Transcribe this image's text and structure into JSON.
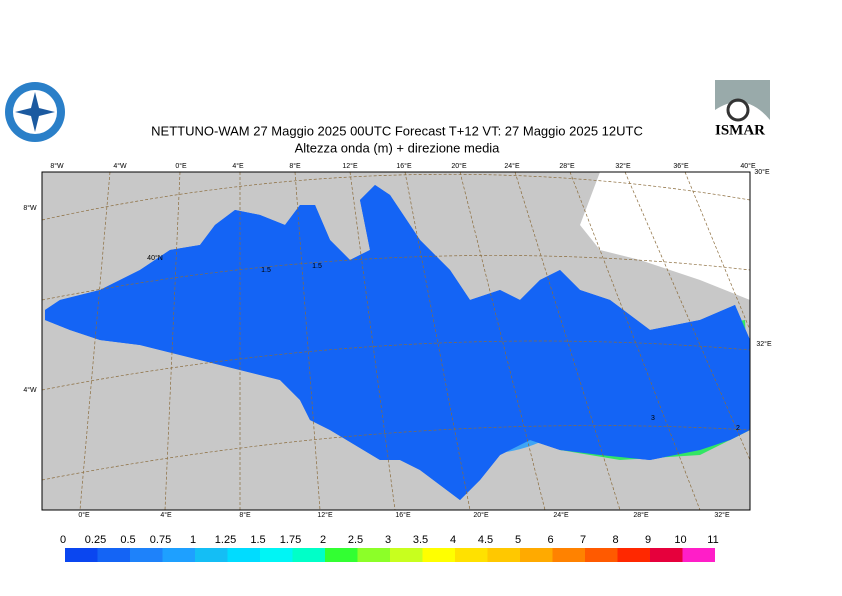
{
  "header": {
    "title": "NETTUNO-WAM  27   Maggio  2025 00UTC Forecast T+12 VT: 27   Maggio  2025 12UTC",
    "subtitle": "Altezza onda (m) + direzione media",
    "logo_text": "ISMAR"
  },
  "graticule_labels": {
    "top": [
      "8°W",
      "4°W",
      "0°E",
      "4°E",
      "8°E",
      "12°E",
      "16°E",
      "20°E",
      "24°E",
      "28°E",
      "32°E",
      "36°E",
      "40°E"
    ],
    "bottom": [
      "0°E",
      "4°E",
      "8°E",
      "12°E",
      "16°E",
      "20°E",
      "24°E",
      "28°E",
      "32°E"
    ],
    "left": [
      "8°W",
      "4°W"
    ],
    "inner": [
      "40°N"
    ],
    "right": [
      "30°E",
      "32°E"
    ]
  },
  "contour_labels": [
    "1.5",
    "1.5",
    "3",
    "2"
  ],
  "colorbar": {
    "levels": [
      "0",
      "0.25",
      "0.5",
      "0.75",
      "1",
      "1.25",
      "1.5",
      "1.75",
      "2",
      "2.5",
      "3",
      "3.5",
      "4",
      "4.5",
      "5",
      "6",
      "7",
      "8",
      "9",
      "10",
      "11"
    ],
    "colors": [
      "#0a46f0",
      "#1464f5",
      "#1e82fa",
      "#1ea0ff",
      "#14bef5",
      "#00dcff",
      "#00f5f5",
      "#00ffc8",
      "#32ff32",
      "#8cff28",
      "#c8ff1e",
      "#ffff00",
      "#ffe100",
      "#ffc800",
      "#ffaa00",
      "#ff8200",
      "#ff5a00",
      "#ff2800",
      "#e6003c",
      "#ff1ec8"
    ]
  }
}
